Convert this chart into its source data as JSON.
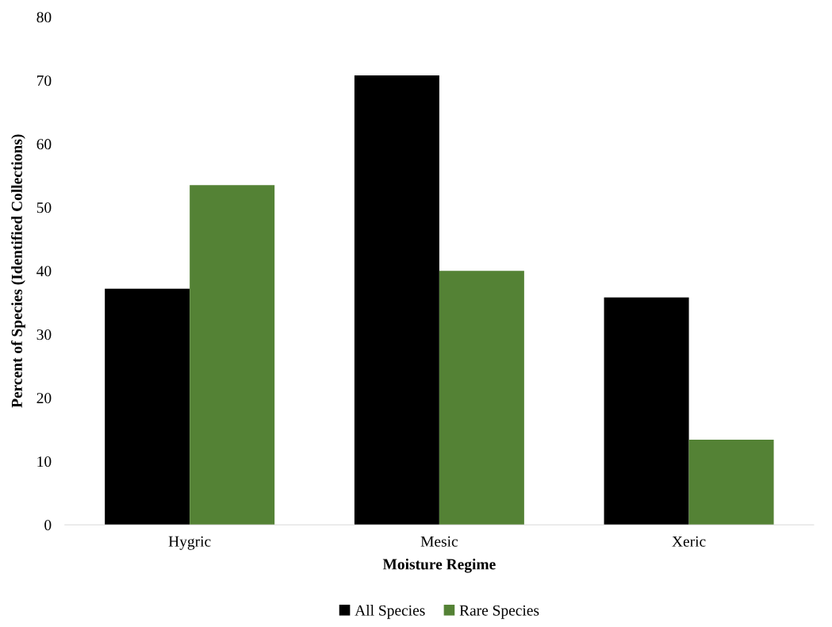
{
  "chart_data": {
    "type": "bar",
    "xlabel": "Moisture Regime",
    "ylabel": "Percent of Species (Identified Collections)",
    "categories": [
      "Hygric",
      "Mesic",
      "Xeric"
    ],
    "series": [
      {
        "name": "All Species",
        "color": "#000000",
        "values": [
          37.2,
          70.8,
          35.8
        ]
      },
      {
        "name": "Rare Species",
        "color": "#548235",
        "values": [
          53.5,
          40.0,
          13.4
        ]
      }
    ],
    "ylim": [
      0,
      80
    ],
    "yticks": [
      0,
      10,
      20,
      30,
      40,
      50,
      60,
      70,
      80
    ],
    "grid": false,
    "legend": "bottom"
  }
}
